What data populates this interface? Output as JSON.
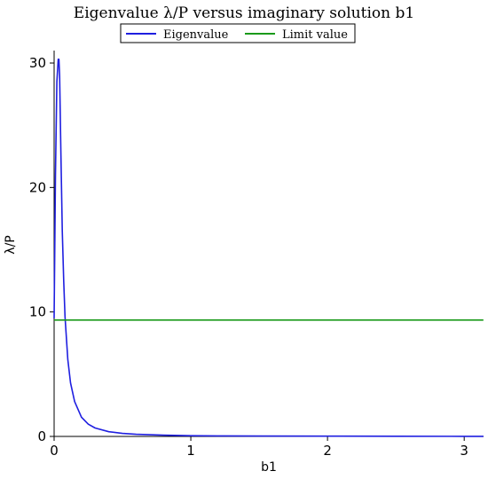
{
  "chart_data": {
    "type": "line",
    "title": "Eigenvalue λ/P versus imaginary solution b1",
    "xlabel": "b1",
    "ylabel": "λ/P",
    "xlim": [
      0,
      3.14159
    ],
    "ylim": [
      0,
      31
    ],
    "xticks": [
      0,
      1,
      2,
      3
    ],
    "yticks": [
      0,
      10,
      20,
      30
    ],
    "legend_position": "top",
    "grid": false,
    "series": [
      {
        "name": "Eigenvalue",
        "color": "#1f1fe0",
        "x": [
          0.0,
          0.01,
          0.02,
          0.03,
          0.035,
          0.04,
          0.05,
          0.06,
          0.07,
          0.08,
          0.1,
          0.12,
          0.15,
          0.2,
          0.25,
          0.3,
          0.4,
          0.5,
          0.6,
          0.8,
          1.0,
          1.2,
          1.5,
          2.0,
          2.5,
          3.0,
          3.14
        ],
        "y": [
          9.5,
          21.0,
          28.5,
          30.3,
          30.3,
          29.0,
          22.5,
          16.5,
          12.5,
          9.6,
          6.2,
          4.3,
          2.8,
          1.55,
          0.98,
          0.68,
          0.38,
          0.24,
          0.17,
          0.1,
          0.06,
          0.04,
          0.03,
          0.02,
          0.012,
          0.01,
          0.01
        ]
      },
      {
        "name": "Limit value",
        "color": "#1a9a1a",
        "x": [
          0.0,
          3.14
        ],
        "y": [
          9.35,
          9.35
        ]
      }
    ]
  }
}
